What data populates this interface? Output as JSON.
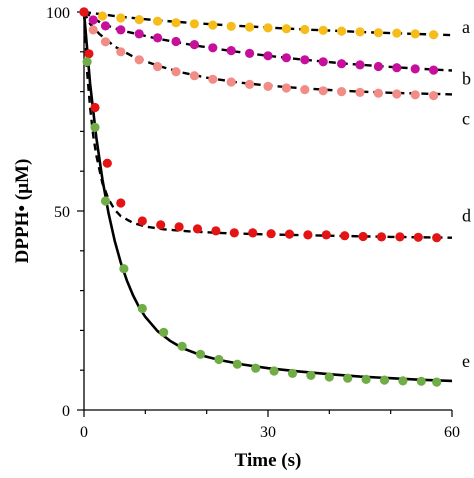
{
  "chart_data": {
    "type": "scatter",
    "xlabel": "Time (s)",
    "ylabel": "DPPH• (µM)",
    "xlim": [
      0,
      60
    ],
    "ylim": [
      0,
      100
    ],
    "x_ticks": [
      "0",
      "30",
      "60"
    ],
    "y_ticks": [
      "0",
      "50",
      "100"
    ],
    "series": [
      {
        "name": "a",
        "color": "#f6bd1a",
        "points": [
          [
            0,
            100
          ],
          [
            3,
            99
          ],
          [
            6,
            98.5
          ],
          [
            9,
            98.1
          ],
          [
            12,
            97.7
          ],
          [
            15,
            97.3
          ],
          [
            18,
            97
          ],
          [
            21,
            96.7
          ],
          [
            24,
            96.4
          ],
          [
            27,
            96.2
          ],
          [
            30,
            96
          ],
          [
            33,
            95.8
          ],
          [
            36,
            95.6
          ],
          [
            39,
            95.4
          ],
          [
            42,
            95.2
          ],
          [
            45,
            95
          ],
          [
            48,
            94.8
          ],
          [
            51,
            94.7
          ],
          [
            54,
            94.5
          ],
          [
            57,
            94.3
          ]
        ],
        "fit": [
          [
            0,
            100
          ],
          [
            6,
            98.8
          ],
          [
            12,
            97.9
          ],
          [
            18,
            97.2
          ],
          [
            24,
            96.6
          ],
          [
            30,
            96.1
          ],
          [
            36,
            95.6
          ],
          [
            42,
            95.2
          ],
          [
            48,
            94.8
          ],
          [
            54,
            94.5
          ],
          [
            60,
            94.2
          ]
        ]
      },
      {
        "name": "b",
        "color": "#c6109c",
        "points": [
          [
            0,
            100
          ],
          [
            1.5,
            98
          ],
          [
            3.5,
            96.5
          ],
          [
            6,
            95.5
          ],
          [
            9,
            94.5
          ],
          [
            12,
            93.5
          ],
          [
            15,
            92.6
          ],
          [
            18,
            91.8
          ],
          [
            21,
            91
          ],
          [
            24,
            90.3
          ],
          [
            27,
            89.6
          ],
          [
            30,
            89
          ],
          [
            33,
            88.5
          ],
          [
            36,
            88
          ],
          [
            39,
            87.5
          ],
          [
            42,
            87
          ],
          [
            45,
            86.7
          ],
          [
            48,
            86.3
          ],
          [
            51,
            86
          ],
          [
            54,
            85.7
          ],
          [
            57,
            85.4
          ]
        ],
        "fit": [
          [
            0,
            100
          ],
          [
            3,
            97
          ],
          [
            6,
            95.4
          ],
          [
            12,
            93.3
          ],
          [
            18,
            91.6
          ],
          [
            24,
            90.2
          ],
          [
            30,
            89
          ],
          [
            36,
            88
          ],
          [
            42,
            87.1
          ],
          [
            48,
            86.4
          ],
          [
            54,
            85.8
          ],
          [
            60,
            85.3
          ]
        ]
      },
      {
        "name": "c",
        "color": "#f28c86",
        "points": [
          [
            1.5,
            95.5
          ],
          [
            3.5,
            92.5
          ],
          [
            6,
            90
          ],
          [
            9,
            88
          ],
          [
            12,
            86.3
          ],
          [
            15,
            85
          ],
          [
            18,
            84
          ],
          [
            21,
            83.1
          ],
          [
            24,
            82.4
          ],
          [
            27,
            81.8
          ],
          [
            30,
            81.3
          ],
          [
            33,
            80.9
          ],
          [
            36,
            80.5
          ],
          [
            39,
            80.2
          ],
          [
            42,
            80
          ],
          [
            45,
            79.8
          ],
          [
            48,
            79.6
          ],
          [
            51,
            79.4
          ],
          [
            54,
            79.2
          ],
          [
            57,
            79
          ]
        ],
        "fit": [
          [
            0,
            100
          ],
          [
            1,
            97
          ],
          [
            2.5,
            94.5
          ],
          [
            5,
            91.3
          ],
          [
            8,
            88.8
          ],
          [
            12,
            86.5
          ],
          [
            16,
            84.8
          ],
          [
            20,
            83.5
          ],
          [
            25,
            82.3
          ],
          [
            30,
            81.5
          ],
          [
            35,
            80.9
          ],
          [
            40,
            80.4
          ],
          [
            45,
            80
          ],
          [
            50,
            79.7
          ],
          [
            55,
            79.5
          ],
          [
            60,
            79.3
          ]
        ]
      },
      {
        "name": "d",
        "color": "#e41414",
        "points": [
          [
            0,
            100
          ],
          [
            0.8,
            89.5
          ],
          [
            1.8,
            76
          ],
          [
            3.8,
            62
          ],
          [
            6,
            52
          ],
          [
            9.5,
            47.5
          ],
          [
            12.5,
            46.5
          ],
          [
            15.5,
            46
          ],
          [
            18.5,
            45.5
          ],
          [
            21.5,
            45
          ],
          [
            24.5,
            44.5
          ],
          [
            27.5,
            44.5
          ],
          [
            30.5,
            44.3
          ],
          [
            33.5,
            44.2
          ],
          [
            36.5,
            44
          ],
          [
            39.5,
            44
          ],
          [
            42.5,
            43.8
          ],
          [
            45.5,
            43.6
          ],
          [
            48.5,
            43.5
          ],
          [
            51.5,
            43.5
          ],
          [
            54.5,
            43.4
          ],
          [
            57.5,
            43.3
          ]
        ],
        "fit": [
          [
            0,
            100
          ],
          [
            0.5,
            85
          ],
          [
            1,
            76
          ],
          [
            1.5,
            69
          ],
          [
            2,
            64
          ],
          [
            3,
            57
          ],
          [
            4,
            53
          ],
          [
            5,
            50.3
          ],
          [
            6,
            48.7
          ],
          [
            8,
            47
          ],
          [
            10,
            46.1
          ],
          [
            13,
            45.4
          ],
          [
            17,
            44.9
          ],
          [
            22,
            44.5
          ],
          [
            30,
            44.1
          ],
          [
            40,
            43.8
          ],
          [
            50,
            43.5
          ],
          [
            60,
            43.3
          ]
        ]
      },
      {
        "name": "e",
        "color": "#70ad47",
        "points": [
          [
            0.5,
            87.5
          ],
          [
            1.8,
            71
          ],
          [
            3.5,
            52.5
          ],
          [
            6.5,
            35.5
          ],
          [
            9.5,
            25.5
          ],
          [
            13,
            19.5
          ],
          [
            16,
            16
          ],
          [
            19,
            14
          ],
          [
            22,
            12.7
          ],
          [
            25,
            11.5
          ],
          [
            28,
            10.5
          ],
          [
            31,
            9.8
          ],
          [
            34,
            9.2
          ],
          [
            37,
            8.7
          ],
          [
            40,
            8.3
          ],
          [
            43,
            8
          ],
          [
            46,
            7.7
          ],
          [
            49,
            7.5
          ],
          [
            52,
            7.3
          ],
          [
            55,
            7.2
          ],
          [
            57.5,
            7
          ]
        ],
        "fit": [
          [
            0,
            100
          ],
          [
            1,
            82
          ],
          [
            2,
            68.5
          ],
          [
            3,
            58
          ],
          [
            4,
            49.5
          ],
          [
            5,
            42.5
          ],
          [
            6,
            37
          ],
          [
            7,
            32.5
          ],
          [
            8,
            28.8
          ],
          [
            9,
            25.8
          ],
          [
            10,
            23.4
          ],
          [
            12,
            19.8
          ],
          [
            14,
            17.4
          ],
          [
            16,
            15.6
          ],
          [
            19,
            13.8
          ],
          [
            22,
            12.6
          ],
          [
            26,
            11.4
          ],
          [
            30,
            10.5
          ],
          [
            35,
            9.7
          ],
          [
            40,
            9
          ],
          [
            45,
            8.4
          ],
          [
            50,
            8
          ],
          [
            55,
            7.6
          ],
          [
            60,
            7.3
          ]
        ]
      }
    ]
  }
}
